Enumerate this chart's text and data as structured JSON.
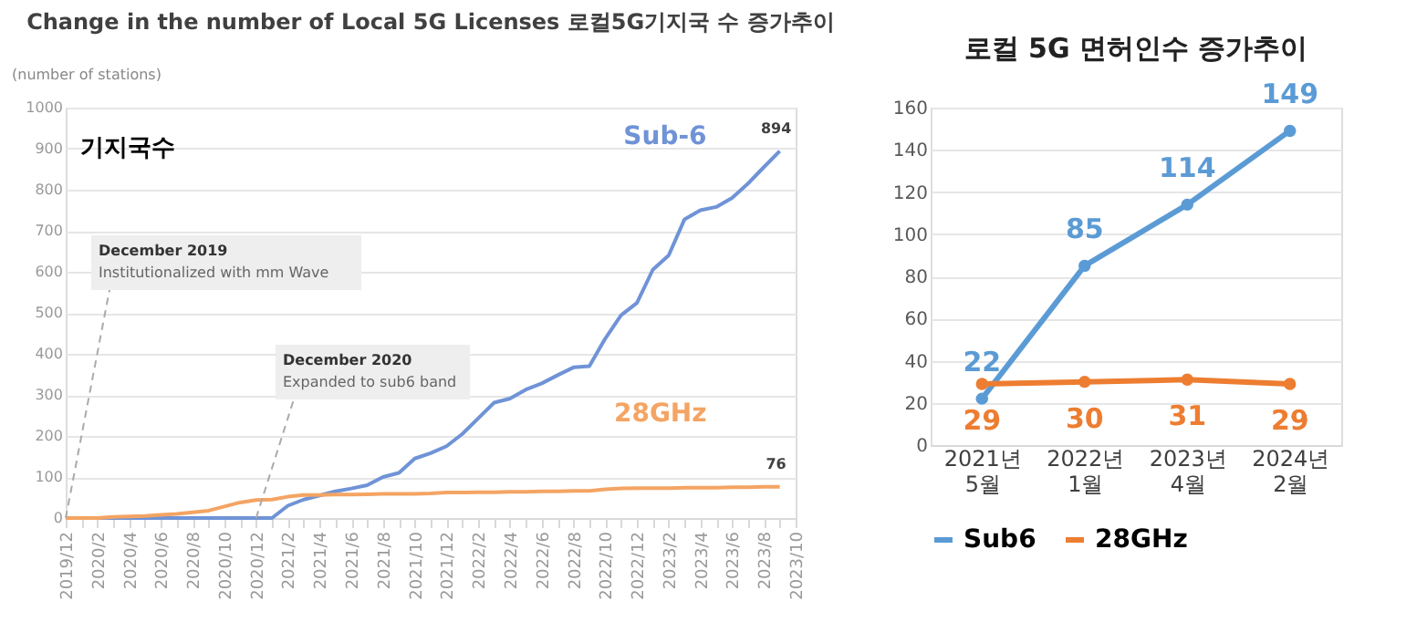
{
  "chart_data": [
    {
      "type": "line",
      "title": "Change in the number of Local 5G Licenses 로컬5G기지국 수 증가추이",
      "ylabel": "(number of stations)",
      "categories": [
        "2019/12",
        null,
        "2020/2",
        null,
        "2020/4",
        null,
        "2020/6",
        null,
        "2020/8",
        null,
        "2020/10",
        null,
        "2020/12",
        null,
        "2021/2",
        null,
        "2021/4",
        null,
        "2021/6",
        null,
        "2021/8",
        null,
        "2021/10",
        null,
        "2021/12",
        null,
        "2022/2",
        null,
        "2022/4",
        null,
        "2022/6",
        null,
        "2022/8",
        null,
        "2022/10",
        null,
        "2022/12",
        null,
        "2023/2",
        null,
        "2023/4",
        null,
        "2023/6",
        null,
        "2023/8",
        null,
        "2023/10"
      ],
      "series": [
        {
          "name": "Sub-6",
          "color": "#6f93d6",
          "values": [
            0,
            0,
            0,
            0,
            0,
            0,
            0,
            0,
            0,
            0,
            0,
            0,
            0,
            0,
            30,
            45,
            55,
            65,
            72,
            80,
            100,
            110,
            145,
            158,
            175,
            205,
            243,
            281,
            291,
            313,
            328,
            348,
            367,
            370,
            437,
            494,
            524,
            605,
            640,
            728,
            750,
            758,
            780,
            815,
            855,
            894,
            null
          ],
          "value_labels": [
            null,
            null,
            null,
            null,
            null,
            null,
            null,
            null,
            null,
            null,
            null,
            null,
            null,
            null,
            null,
            null,
            null,
            null,
            null,
            null,
            null,
            null,
            null,
            null,
            null,
            null,
            null,
            null,
            null,
            null,
            null,
            null,
            null,
            null,
            null,
            null,
            null,
            null,
            null,
            null,
            null,
            null,
            null,
            null,
            null,
            "894",
            null
          ]
        },
        {
          "name": "28GHz",
          "color": "#f4a463",
          "values": [
            0,
            0,
            0,
            3,
            4,
            5,
            8,
            10,
            14,
            18,
            28,
            38,
            44,
            45,
            52,
            56,
            56,
            57,
            57,
            58,
            59,
            59,
            59,
            60,
            62,
            62,
            63,
            63,
            64,
            64,
            65,
            65,
            66,
            66,
            70,
            72,
            73,
            73,
            73,
            74,
            74,
            74,
            75,
            75,
            76,
            76,
            null
          ],
          "value_labels": [
            null,
            null,
            null,
            null,
            null,
            null,
            null,
            null,
            null,
            null,
            null,
            null,
            null,
            null,
            null,
            null,
            null,
            null,
            null,
            null,
            null,
            null,
            null,
            null,
            null,
            null,
            null,
            null,
            null,
            null,
            null,
            null,
            null,
            null,
            null,
            null,
            null,
            null,
            null,
            null,
            null,
            null,
            null,
            null,
            null,
            "76",
            null
          ]
        }
      ],
      "ylim": [
        0,
        1000
      ],
      "yticks": [
        0,
        100,
        200,
        300,
        400,
        500,
        600,
        700,
        800,
        900,
        1000
      ],
      "grid": "y",
      "legend": false,
      "marker": "none",
      "annotations": [
        "기지국수",
        {
          "text": "December 2019\nInstitutionalized with mm Wave",
          "x": "2019/12",
          "y": 0
        },
        {
          "text": "December 2020\nExpanded to sub6 band",
          "x": "2020/12",
          "y": 0
        }
      ]
    },
    {
      "type": "line",
      "title": "로컬 5G 면허인수 증가추이",
      "categories": [
        "2021년 5월",
        "2022년 1월",
        "2023년 4월",
        "2024년 2월"
      ],
      "series": [
        {
          "name": "Sub6",
          "color": "#5b9bd5",
          "values": [
            22,
            85,
            114,
            149
          ]
        },
        {
          "name": "28GHz",
          "color": "#ed7d31",
          "values": [
            29,
            30,
            31,
            29
          ]
        }
      ],
      "ylim": [
        0,
        160
      ],
      "yticks": [
        0,
        20,
        40,
        60,
        80,
        100,
        120,
        140,
        160
      ],
      "grid": "y",
      "legend": "bottom",
      "marker": "circle",
      "data_labels": true
    }
  ]
}
